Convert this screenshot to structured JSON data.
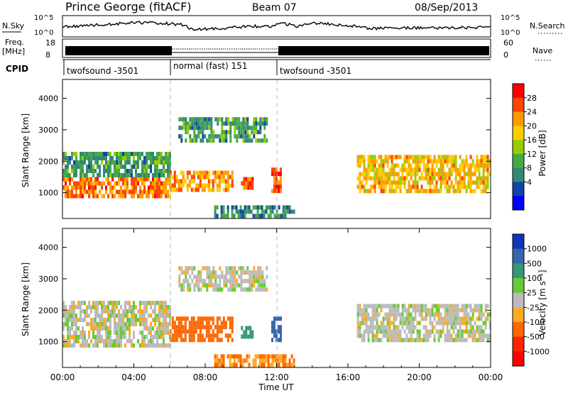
{
  "header": {
    "station": "Prince George (fitACF)",
    "beam": "Beam 07",
    "date": "08/Sep/2013"
  },
  "panels": {
    "nsky": {
      "label": "N.Sky",
      "right_label": "N.Search",
      "tick_top": "10^5",
      "tick_bottom": "10^0"
    },
    "freq": {
      "label_line1": "Freq.",
      "label_line2": "[MHz]",
      "right_label": "Nave",
      "left_ticks": [
        "18",
        "8"
      ],
      "right_ticks": [
        "60",
        "0"
      ]
    },
    "cpid": {
      "label": "CPID",
      "segments": [
        {
          "name": "twofsound -3501",
          "start": 0,
          "end": 6
        },
        {
          "name": "normal (fast) 151",
          "start": 6,
          "end": 12
        },
        {
          "name": "twofsound -3501",
          "start": 12,
          "end": 24
        }
      ]
    }
  },
  "colorbars": {
    "power": {
      "label": "Power [dB]",
      "ticks": [
        "28",
        "24",
        "20",
        "16",
        "12",
        "8",
        "4"
      ],
      "colors": [
        "#ff0000",
        "#ff4400",
        "#ff9900",
        "#ffcc00",
        "#99cc00",
        "#44aa44",
        "#338877",
        "#1144aa",
        "#0000ff"
      ]
    },
    "velocity": {
      "label": "Velocity [m s⁻¹]",
      "ticks": [
        "1000",
        "500",
        "100",
        "25",
        "-25",
        "-100",
        "-500",
        "-1000"
      ],
      "colors": [
        "#1133bb",
        "#3366aa",
        "#339977",
        "#66cc33",
        "#bbbbbb",
        "#ffaa22",
        "#ff6600",
        "#ff2200",
        "#ff0000"
      ]
    }
  },
  "chart_data": [
    {
      "type": "heatmap",
      "name": "power",
      "ylabel": "Slant Range [km]",
      "ylim": [
        180,
        4600
      ],
      "xlim": [
        0,
        24
      ],
      "yticks": [
        1000,
        2000,
        3000,
        4000
      ],
      "colorscale_label": "Power [dB]",
      "echo_regions": [
        {
          "t0": 0.0,
          "t1": 6.0,
          "r0": 900,
          "r1": 1500,
          "power": 24
        },
        {
          "t0": 0.0,
          "t1": 6.0,
          "r0": 1500,
          "r1": 2300,
          "power": 10
        },
        {
          "t0": 6.0,
          "t1": 9.5,
          "r0": 1100,
          "r1": 1700,
          "power": 22
        },
        {
          "t0": 10.0,
          "t1": 10.7,
          "r0": 1100,
          "r1": 1500,
          "power": 26
        },
        {
          "t0": 11.7,
          "t1": 12.2,
          "r0": 1100,
          "r1": 1800,
          "power": 26
        },
        {
          "t0": 6.5,
          "t1": 11.5,
          "r0": 2600,
          "r1": 3400,
          "power": 10
        },
        {
          "t0": 8.5,
          "t1": 13.0,
          "r0": 300,
          "r1": 600,
          "power": 8
        },
        {
          "t0": 16.5,
          "t1": 24.0,
          "r0": 1000,
          "r1": 2200,
          "power": 20
        }
      ]
    },
    {
      "type": "heatmap",
      "name": "velocity",
      "ylabel": "Slant Range [km]",
      "xlabel": "Time UT",
      "ylim": [
        180,
        4600
      ],
      "xlim": [
        0,
        24
      ],
      "yticks": [
        1000,
        2000,
        3000,
        4000
      ],
      "xticks": [
        0,
        4,
        8,
        12,
        16,
        20,
        24
      ],
      "xticklabels": [
        "00:00",
        "04:00",
        "08:00",
        "12:00",
        "16:00",
        "20:00",
        "00:00"
      ],
      "colorscale_label": "Velocity [m s⁻¹]",
      "echo_regions": [
        {
          "t0": 0.0,
          "t1": 6.0,
          "r0": 900,
          "r1": 2300,
          "velocity": 0
        },
        {
          "t0": 6.0,
          "t1": 9.5,
          "r0": 1100,
          "r1": 1800,
          "velocity": -300
        },
        {
          "t0": 10.0,
          "t1": 10.7,
          "r0": 1100,
          "r1": 1500,
          "velocity": 400
        },
        {
          "t0": 11.7,
          "t1": 12.2,
          "r0": 1100,
          "r1": 1800,
          "velocity": 800
        },
        {
          "t0": 6.5,
          "t1": 11.5,
          "r0": 2600,
          "r1": 3400,
          "velocity": 0
        },
        {
          "t0": 8.5,
          "t1": 13.0,
          "r0": 300,
          "r1": 600,
          "velocity": -100
        },
        {
          "t0": 16.5,
          "t1": 24.0,
          "r0": 1000,
          "r1": 2200,
          "velocity": 0
        }
      ]
    }
  ]
}
